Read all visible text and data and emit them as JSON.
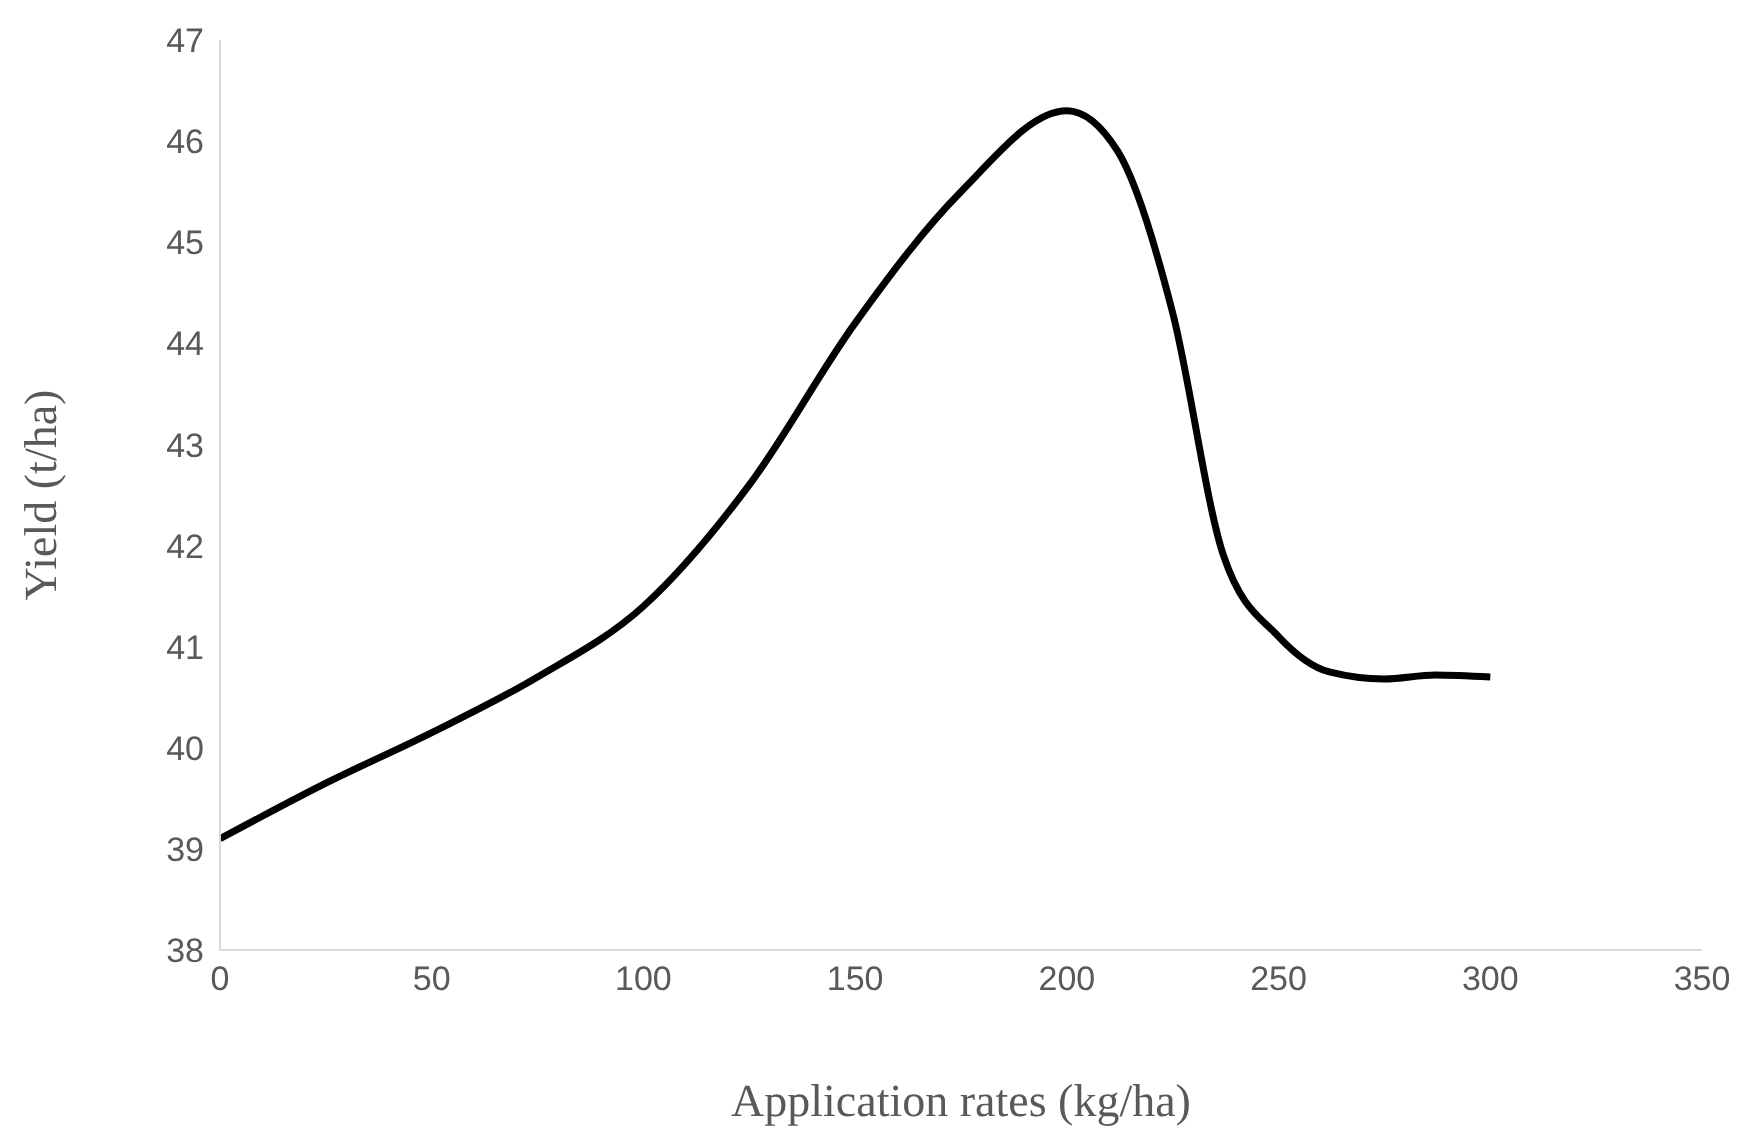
{
  "chart_data": {
    "type": "line",
    "xlabel": "Application rates (kg/ha)",
    "ylabel": "Yield (t/ha)",
    "x": [
      0,
      25,
      50,
      75,
      100,
      125,
      150,
      175,
      200,
      212,
      225,
      237,
      250,
      262,
      275,
      287,
      300
    ],
    "series": [
      {
        "color": "#000000",
        "values": [
          39.1,
          39.65,
          40.15,
          40.7,
          41.4,
          42.6,
          44.2,
          45.5,
          46.3,
          45.9,
          44.3,
          41.9,
          41.1,
          40.75,
          40.68,
          40.72,
          40.7
        ]
      }
    ],
    "xlim": [
      0,
      350
    ],
    "xticks": [
      0,
      50,
      100,
      150,
      200,
      250,
      300,
      350
    ],
    "ylim": [
      38,
      47
    ],
    "yticks": [
      38,
      39,
      40,
      41,
      42,
      43,
      44,
      45,
      46,
      47
    ],
    "grid": false,
    "legend": false,
    "marker": "none",
    "line_style": "solid"
  }
}
